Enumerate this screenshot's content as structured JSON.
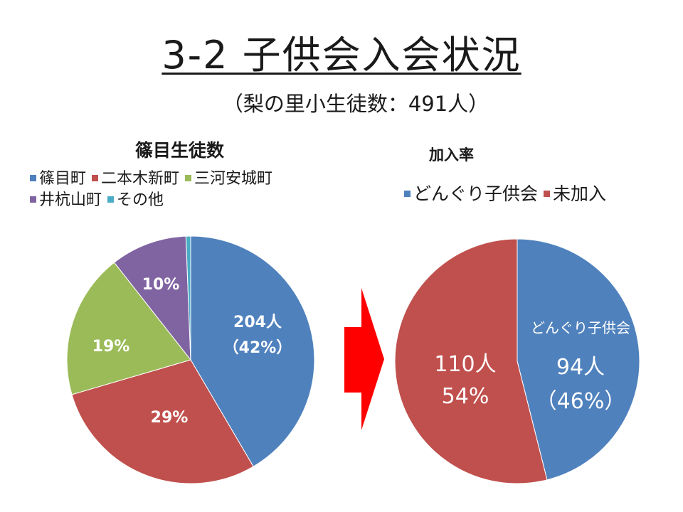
{
  "title": "3-2 子供会入会状況",
  "subtitle": "（梨の里小生徒数：491人）",
  "chart_data": [
    {
      "type": "pie",
      "title": "篠目生徒数",
      "categories": [
        "篠目町",
        "二本木新町",
        "三河安城町",
        "井杭山町",
        "その他"
      ],
      "values": [
        204,
        142,
        93,
        49,
        3
      ],
      "colors": [
        "#4f81bd",
        "#c0504d",
        "#9bbb59",
        "#8064a2",
        "#4bacc6"
      ],
      "labels": [
        {
          "line1": "204人",
          "line2": "（42%）"
        },
        {
          "line1": "29%",
          "line2": ""
        },
        {
          "line1": "19%",
          "line2": ""
        },
        {
          "line1": "10%",
          "line2": ""
        },
        {
          "line1": "",
          "line2": ""
        }
      ],
      "legend": "top"
    },
    {
      "type": "pie",
      "title": "加入率",
      "categories": [
        "どんぐり子供会",
        "未加入"
      ],
      "values": [
        94,
        110
      ],
      "colors": [
        "#4f81bd",
        "#c0504d"
      ],
      "labels": [
        {
          "line1": "94人",
          "line2": "（46%）",
          "name": "どんぐり子供会"
        },
        {
          "line1": "110人",
          "line2": "54%"
        }
      ],
      "legend": "top"
    }
  ],
  "arrow_color": "#ff0000"
}
